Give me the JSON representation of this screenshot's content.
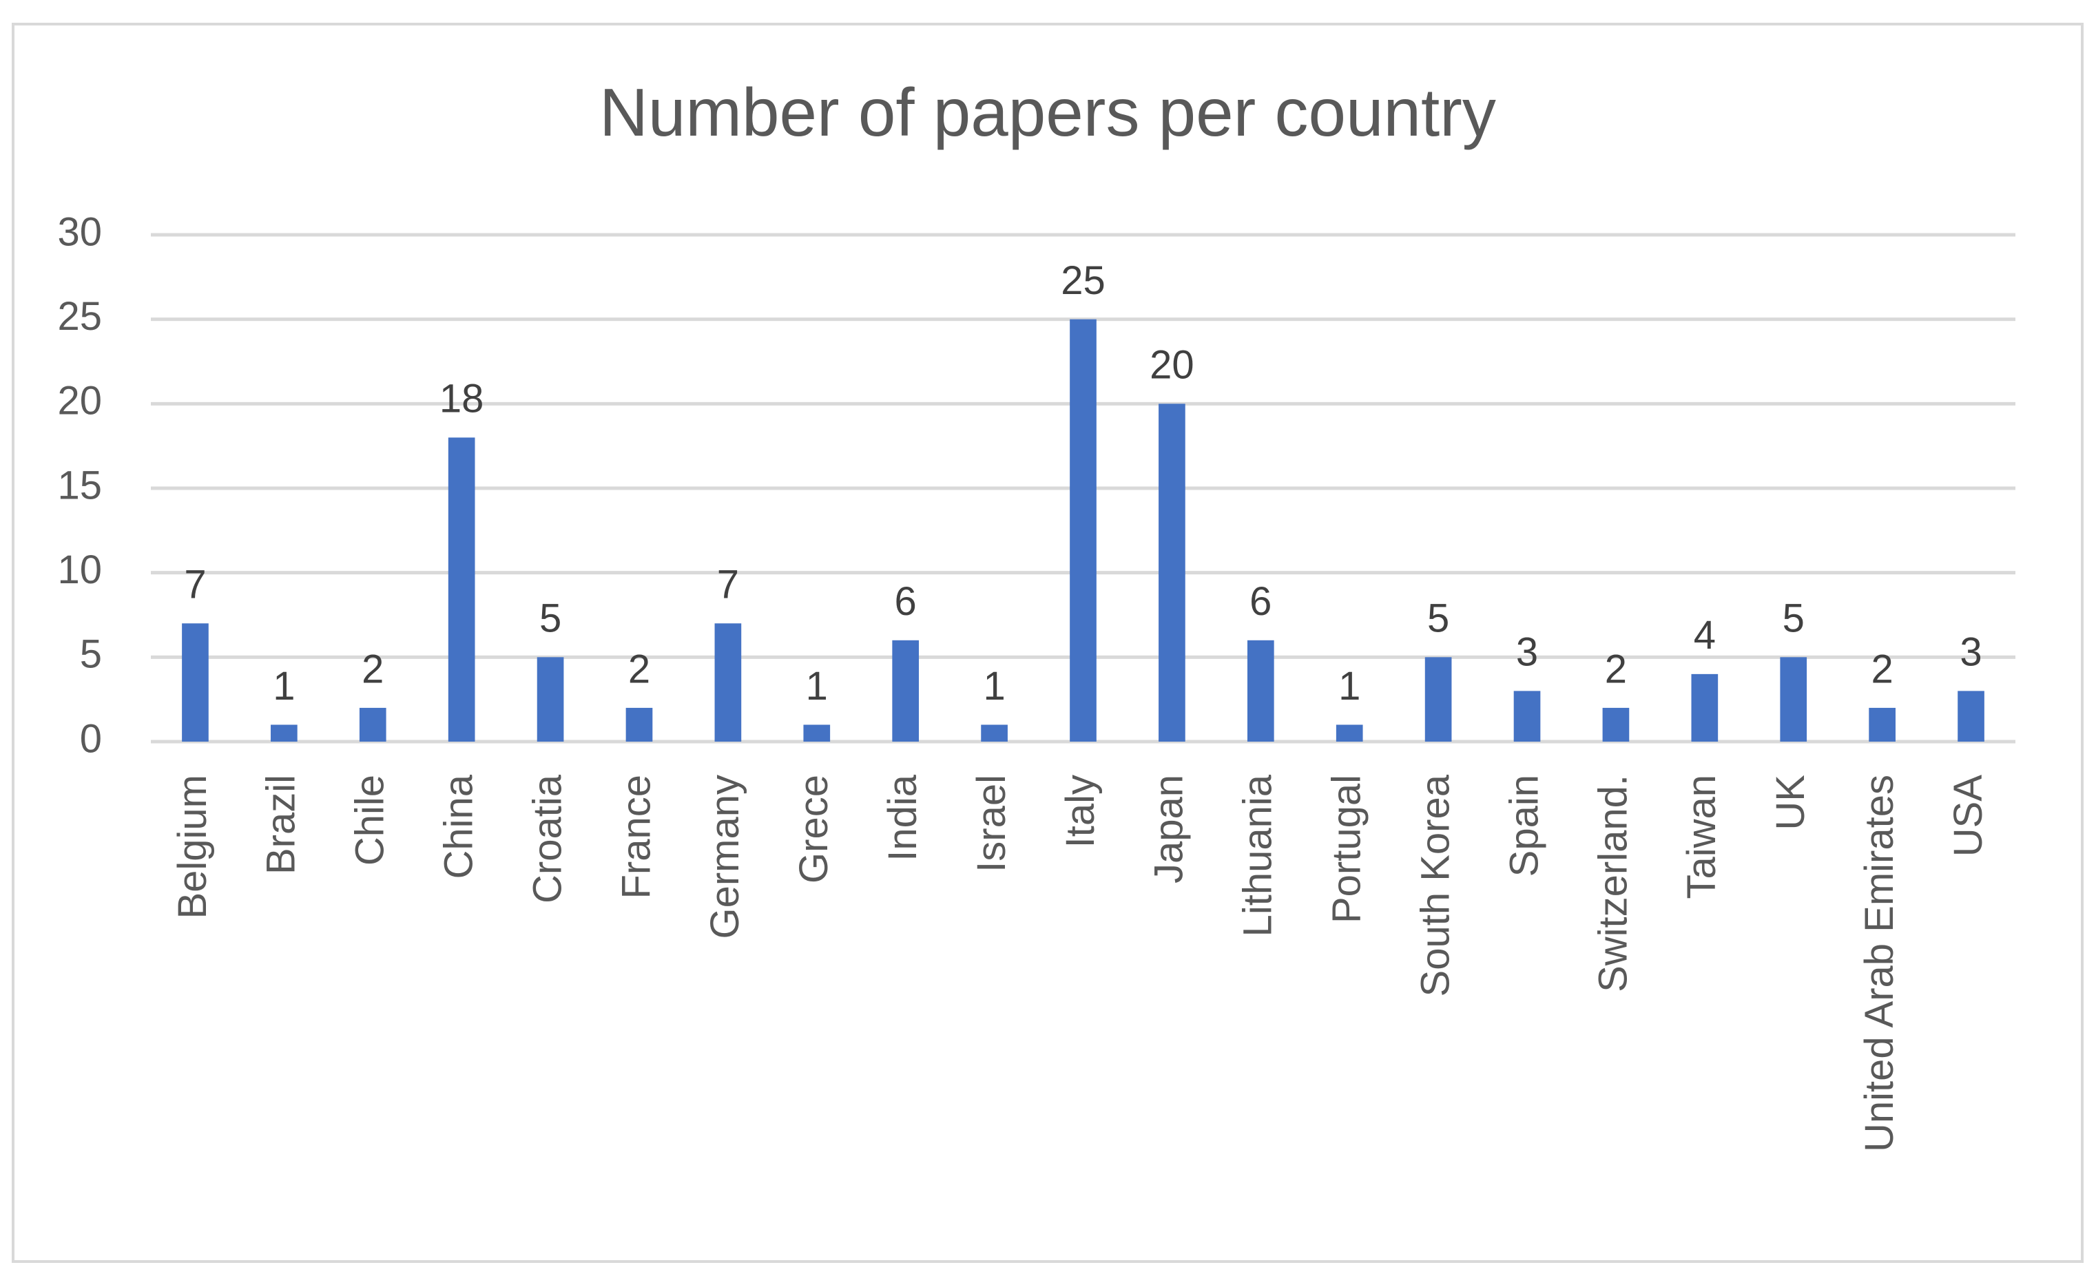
{
  "chart_data": {
    "type": "bar",
    "title": "Number of papers per country",
    "categories": [
      "Belgium",
      "Brazil",
      "Chile",
      "China",
      "Croatia",
      "France",
      "Germany",
      "Grece",
      "India",
      "Israel",
      "Italy",
      "Japan",
      "Lithuania",
      "Portugal",
      "South Korea",
      "Spain",
      "Switzerland.",
      "Taiwan",
      "UK",
      "United Arab Emirates",
      "USA"
    ],
    "values": [
      7,
      1,
      2,
      18,
      5,
      2,
      7,
      1,
      6,
      1,
      25,
      20,
      6,
      1,
      5,
      3,
      2,
      4,
      5,
      2,
      3
    ],
    "color": "#4472c4",
    "ylim": [
      0,
      30
    ],
    "yticks": [
      0,
      5,
      10,
      15,
      20,
      25,
      30
    ],
    "grid": true,
    "data_labels": true
  }
}
